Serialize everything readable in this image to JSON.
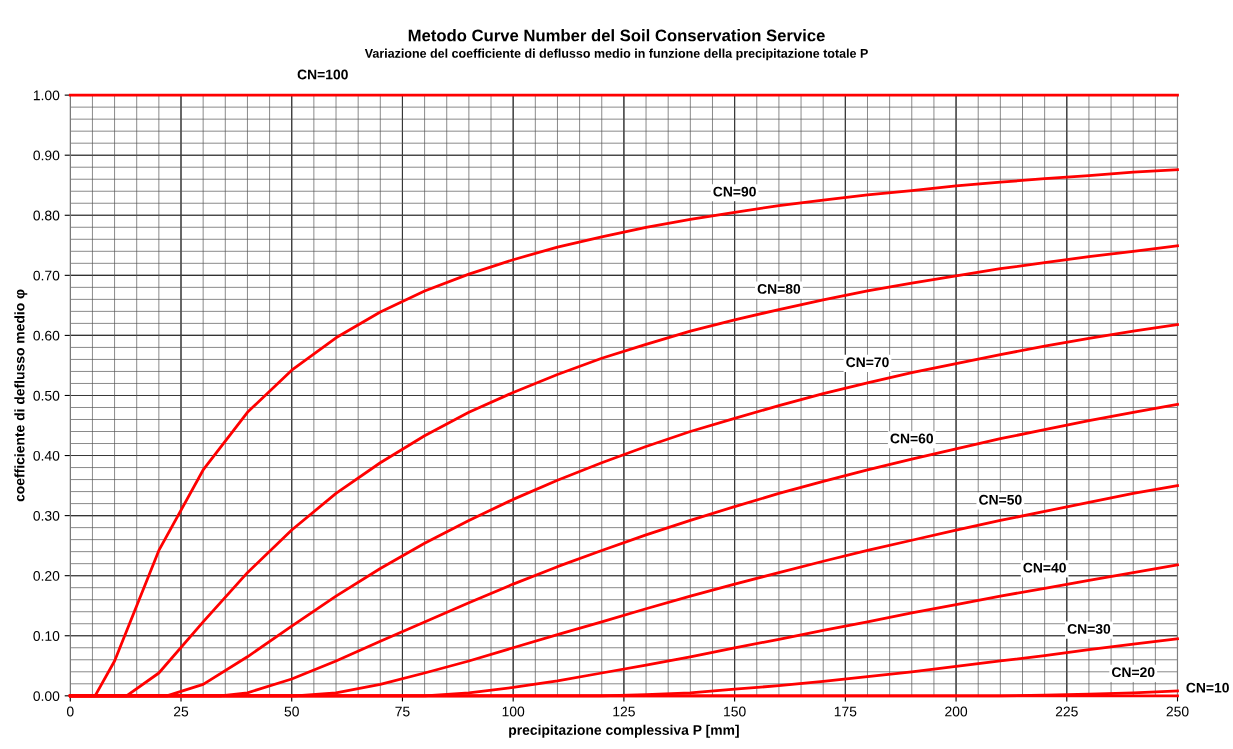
{
  "chart_data": {
    "type": "line",
    "title": "Metodo Curve Number del Soil Conservation Service",
    "subtitle": "Variazione del coefficiente di deflusso medio in funzione della precipitazione totale P",
    "xlabel": "precipitazione complessiva P [mm]",
    "ylabel": "coefficiente di deflusso medio φ",
    "series": [
      {
        "color": "#ff0000",
        "x": [
          0,
          250
        ],
        "values": [
          1,
          1
        ]
      },
      {
        "color": "#ff0000",
        "x": [
          0,
          5.6,
          10,
          20,
          30,
          40,
          50,
          60,
          70,
          80,
          90,
          100,
          110,
          120,
          130,
          140,
          150,
          160,
          170,
          180,
          190,
          200,
          210,
          220,
          230,
          240,
          250
        ],
        "values": [
          0,
          0,
          0.058,
          0.242,
          0.376,
          0.472,
          0.542,
          0.596,
          0.639,
          0.674,
          0.702,
          0.726,
          0.747,
          0.764,
          0.78,
          0.793,
          0.805,
          0.816,
          0.825,
          0.834,
          0.841,
          0.849,
          0.855,
          0.861,
          0.866,
          0.872,
          0.876
        ]
      },
      {
        "color": "#ff0000",
        "x": [
          0,
          12.7,
          20,
          30,
          40,
          50,
          60,
          70,
          80,
          90,
          100,
          110,
          120,
          130,
          140,
          150,
          160,
          170,
          180,
          190,
          200,
          210,
          220,
          230,
          240,
          250
        ],
        "values": [
          0,
          0,
          0.038,
          0.123,
          0.205,
          0.276,
          0.337,
          0.388,
          0.433,
          0.472,
          0.505,
          0.535,
          0.562,
          0.585,
          0.607,
          0.626,
          0.643,
          0.659,
          0.674,
          0.687,
          0.699,
          0.711,
          0.721,
          0.731,
          0.74,
          0.749
        ]
      },
      {
        "color": "#ff0000",
        "x": [
          0,
          21.8,
          30,
          40,
          50,
          60,
          70,
          80,
          90,
          100,
          110,
          120,
          130,
          140,
          150,
          160,
          170,
          180,
          190,
          200,
          210,
          220,
          230,
          240,
          250
        ],
        "values": [
          0,
          0,
          0.019,
          0.065,
          0.116,
          0.166,
          0.212,
          0.254,
          0.292,
          0.327,
          0.359,
          0.388,
          0.415,
          0.44,
          0.462,
          0.483,
          0.503,
          0.521,
          0.538,
          0.553,
          0.568,
          0.582,
          0.595,
          0.607,
          0.618
        ]
      },
      {
        "color": "#ff0000",
        "x": [
          0,
          33.9,
          40,
          50,
          60,
          70,
          80,
          90,
          100,
          110,
          120,
          130,
          140,
          150,
          160,
          170,
          180,
          190,
          200,
          210,
          220,
          230,
          240,
          250
        ],
        "values": [
          0,
          0,
          0.005,
          0.028,
          0.058,
          0.091,
          0.123,
          0.155,
          0.186,
          0.215,
          0.242,
          0.268,
          0.292,
          0.315,
          0.337,
          0.357,
          0.376,
          0.394,
          0.411,
          0.428,
          0.443,
          0.458,
          0.472,
          0.485
        ]
      },
      {
        "color": "#ff0000",
        "x": [
          0,
          50.8,
          60,
          70,
          80,
          90,
          100,
          110,
          120,
          130,
          140,
          150,
          160,
          170,
          180,
          190,
          200,
          210,
          220,
          230,
          240,
          250
        ],
        "values": [
          0,
          0,
          0.005,
          0.019,
          0.038,
          0.058,
          0.08,
          0.102,
          0.123,
          0.145,
          0.166,
          0.186,
          0.205,
          0.224,
          0.242,
          0.259,
          0.276,
          0.292,
          0.307,
          0.322,
          0.337,
          0.35
        ]
      },
      {
        "color": "#ff0000",
        "x": [
          0,
          76.2,
          80,
          90,
          100,
          110,
          120,
          130,
          140,
          150,
          160,
          170,
          180,
          190,
          200,
          210,
          220,
          230,
          240,
          250
        ],
        "values": [
          0,
          0,
          0,
          0.005,
          0.014,
          0.025,
          0.038,
          0.051,
          0.065,
          0.08,
          0.094,
          0.109,
          0.123,
          0.138,
          0.152,
          0.166,
          0.179,
          0.192,
          0.205,
          0.218
        ]
      },
      {
        "color": "#ff0000",
        "x": [
          0,
          118.5,
          120,
          130,
          140,
          150,
          160,
          170,
          180,
          190,
          200,
          210,
          220,
          230,
          240,
          250
        ],
        "values": [
          0,
          0,
          0,
          0.002,
          0.005,
          0.011,
          0.017,
          0.024,
          0.032,
          0.04,
          0.049,
          0.058,
          0.067,
          0.077,
          0.086,
          0.095
        ]
      },
      {
        "color": "#ff0000",
        "x": [
          0,
          203.2,
          210,
          220,
          230,
          240,
          250
        ],
        "values": [
          0,
          0,
          0,
          0.001,
          0.003,
          0.005,
          0.008
        ]
      },
      {
        "color": "#ff0000",
        "x": [
          0,
          250
        ],
        "values": [
          0,
          0
        ]
      }
    ],
    "annotations": [
      {
        "text": "CN=100",
        "x": 57,
        "y": 1
      },
      {
        "text": "CN=90",
        "x": 150,
        "y": 0.805
      },
      {
        "text": "CN=80",
        "x": 160,
        "y": 0.643
      },
      {
        "text": "CN=70",
        "x": 180,
        "y": 0.521
      },
      {
        "text": "CN=60",
        "x": 190,
        "y": 0.394
      },
      {
        "text": "CN=50",
        "x": 210,
        "y": 0.292
      },
      {
        "text": "CN=40",
        "x": 220,
        "y": 0.179
      },
      {
        "text": "CN=30",
        "x": 230,
        "y": 0.077
      },
      {
        "text": "CN=20",
        "x": 240,
        "y": 0.005
      },
      {
        "text": "CN=10",
        "x": 250,
        "y": 0
      }
    ],
    "xlim": [
      0,
      250
    ],
    "ylim": [
      0,
      1
    ],
    "xticks": [
      0,
      25,
      50,
      75,
      100,
      125,
      150,
      175,
      200,
      225,
      250
    ],
    "yticks": [
      {
        "value": 0,
        "label": "0.00"
      },
      {
        "value": 0.1,
        "label": "0.10"
      },
      {
        "value": 0.2,
        "label": "0.20"
      },
      {
        "value": 0.3,
        "label": "0.30"
      },
      {
        "value": 0.4,
        "label": "0.40"
      },
      {
        "value": 0.5,
        "label": "0.50"
      },
      {
        "value": 0.6,
        "label": "0.60"
      },
      {
        "value": 0.7,
        "label": "0.70"
      },
      {
        "value": 0.8,
        "label": "0.80"
      },
      {
        "value": 0.9,
        "label": "0.90"
      },
      {
        "value": 1,
        "label": "1.00"
      }
    ],
    "grid": true,
    "marker": "none",
    "line_style": "solid"
  }
}
